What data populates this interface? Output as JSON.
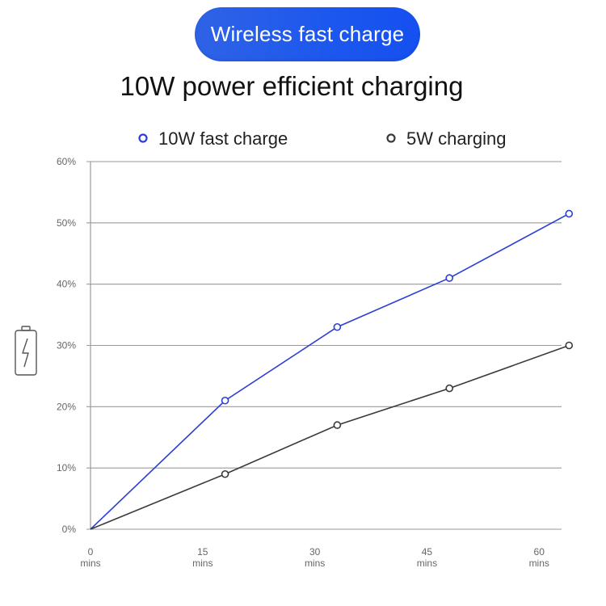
{
  "header": {
    "badge_label": "Wireless fast charge",
    "title": "10W power efficient charging"
  },
  "icons": {
    "battery": "battery-charging-icon"
  },
  "colors": {
    "accent": "#1f56e8",
    "series_10w": "#2a3fd4",
    "series_5w": "#3a3a3a",
    "grid": "#9a9a9a"
  },
  "chart_data": {
    "type": "line",
    "title": "10W power efficient charging",
    "x": [
      0,
      18,
      33,
      48,
      64
    ],
    "x_ticks": [
      {
        "value": 0,
        "line1": "0",
        "line2": "mins"
      },
      {
        "value": 15,
        "line1": "15",
        "line2": "mins"
      },
      {
        "value": 30,
        "line1": "30",
        "line2": "mins"
      },
      {
        "value": 45,
        "line1": "45",
        "line2": "mins"
      },
      {
        "value": 60,
        "line1": "60",
        "line2": "mins"
      }
    ],
    "y_ticks": [
      "0%",
      "10%",
      "20%",
      "30%",
      "40%",
      "50%",
      "60%"
    ],
    "xlim": [
      0,
      63
    ],
    "ylim": [
      0,
      60
    ],
    "grid": true,
    "legend_position": "top",
    "series": [
      {
        "name": "10W fast charge",
        "values": [
          0,
          21,
          33,
          41,
          51.5
        ],
        "color": "#2a3fd4"
      },
      {
        "name": "5W charging",
        "values": [
          0,
          9,
          17,
          23,
          30
        ],
        "color": "#3a3a3a"
      }
    ]
  }
}
